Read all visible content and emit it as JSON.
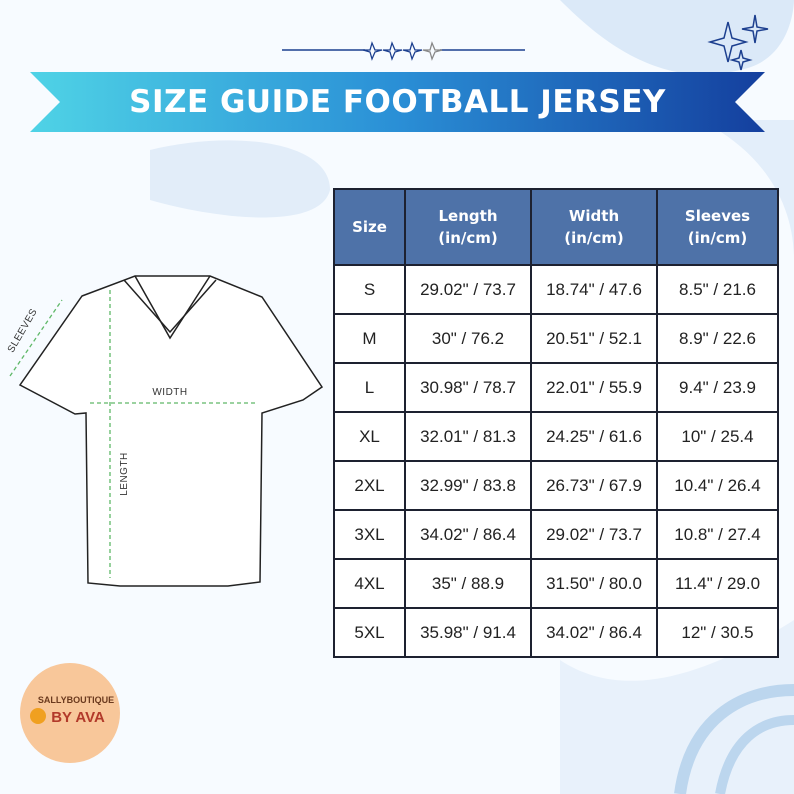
{
  "title": "SIZE GUIDE FOOTBALL JERSEY",
  "diagram": {
    "sleeves": "SLEEVES",
    "width": "WIDTH",
    "length": "LENGTH"
  },
  "table": {
    "headers": [
      {
        "name": "Size"
      },
      {
        "name": "Length",
        "unit": "(in/cm)"
      },
      {
        "name": "Width",
        "unit": "(in/cm)"
      },
      {
        "name": "Sleeves",
        "unit": "(in/cm)"
      }
    ],
    "rows": [
      [
        "S",
        "29.02\" / 73.7",
        "18.74\" / 47.6",
        "8.5\" / 21.6"
      ],
      [
        "M",
        "30\" / 76.2",
        "20.51\" / 52.1",
        "8.9\" / 22.6"
      ],
      [
        "L",
        "30.98\" / 78.7",
        "22.01\" / 55.9",
        "9.4\" / 23.9"
      ],
      [
        "XL",
        "32.01\" / 81.3",
        "24.25\" / 61.6",
        "10\" / 25.4"
      ],
      [
        "2XL",
        "32.99\" / 83.8",
        "26.73\" / 67.9",
        "10.4\" / 26.4"
      ],
      [
        "3XL",
        "34.02\" / 86.4",
        "29.02\" / 73.7",
        "10.8\" / 27.4"
      ],
      [
        "4XL",
        "35\" / 88.9",
        "31.50\" / 80.0",
        "11.4\" / 29.0"
      ],
      [
        "5XL",
        "35.98\" / 91.4",
        "34.02\" / 86.4",
        "12\" / 30.5"
      ]
    ]
  },
  "logo": {
    "top": "SALLYBOUTIQUE",
    "bottom": "BY AVA"
  }
}
